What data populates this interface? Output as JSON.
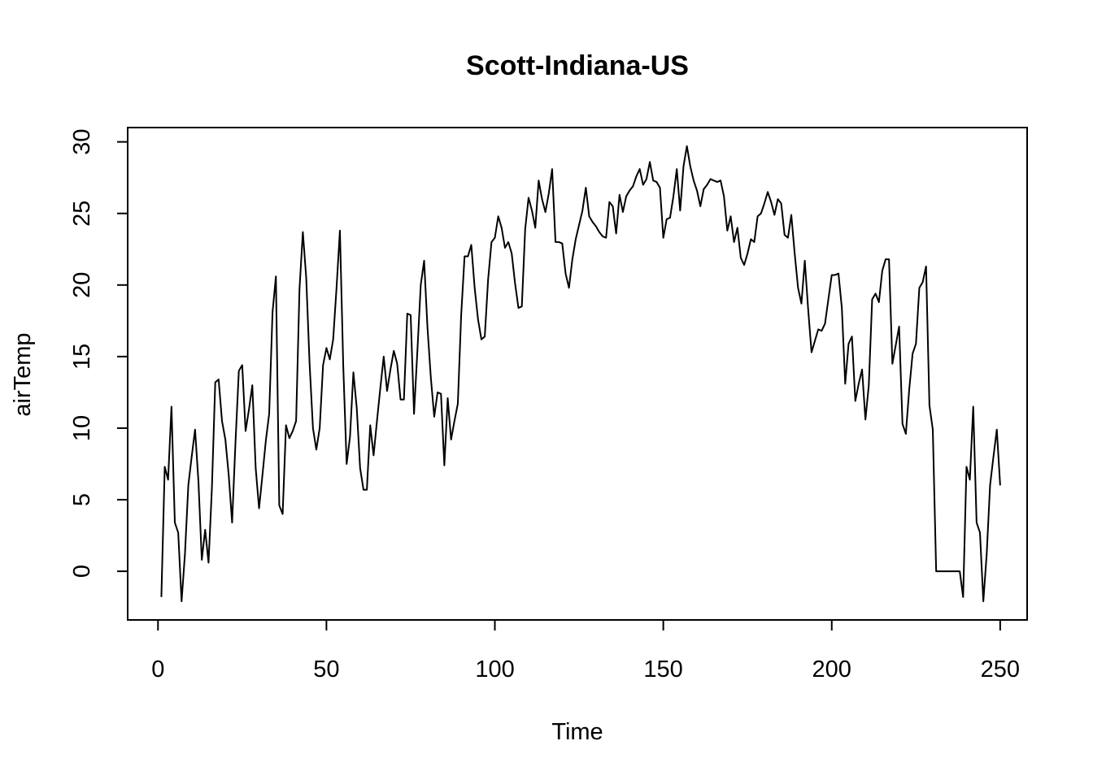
{
  "chart_data": {
    "type": "line",
    "title": "Scott-Indiana-US",
    "xlabel": "Time",
    "ylabel": "airTemp",
    "xlim": [
      -9,
      258
    ],
    "ylim": [
      -3.4,
      31
    ],
    "x_ticks": [
      0,
      50,
      100,
      150,
      200,
      250
    ],
    "y_ticks": [
      0,
      5,
      10,
      15,
      20,
      25,
      30
    ],
    "series": [
      {
        "name": "airTemp",
        "x_start": 1,
        "values": [
          -1.8,
          7.3,
          6.4,
          11.5,
          3.4,
          2.7,
          -2.1,
          1.2,
          6.0,
          8.0,
          9.9,
          6.3,
          0.8,
          2.9,
          0.6,
          5.8,
          13.2,
          13.4,
          10.5,
          9.2,
          6.7,
          3.4,
          9.0,
          14.0,
          14.4,
          9.8,
          11.3,
          13.0,
          7.2,
          4.4,
          6.7,
          9.1,
          11.0,
          18.1,
          20.6,
          4.6,
          4.0,
          10.2,
          9.3,
          9.8,
          10.5,
          19.7,
          23.7,
          20.5,
          14.5,
          10.0,
          8.5,
          10.0,
          14.4,
          15.6,
          14.8,
          16.2,
          19.8,
          23.8,
          14.3,
          7.5,
          9.4,
          13.9,
          11.4,
          7.2,
          5.7,
          5.7,
          10.2,
          8.1,
          10.5,
          12.8,
          15.0,
          12.6,
          14.1,
          15.4,
          14.5,
          12.0,
          12.0,
          18.0,
          17.9,
          11.0,
          15.4,
          20.0,
          21.7,
          17.0,
          13.5,
          10.8,
          12.5,
          12.4,
          7.4,
          12.1,
          9.2,
          10.5,
          11.7,
          17.9,
          22.0,
          22.0,
          22.8,
          19.8,
          17.6,
          16.2,
          16.4,
          20.4,
          23.0,
          23.3,
          24.8,
          24.0,
          22.6,
          23.0,
          22.2,
          20.1,
          18.4,
          18.5,
          23.9,
          26.1,
          25.2,
          24.0,
          27.3,
          26.0,
          25.1,
          26.4,
          28.1,
          23.0,
          23.0,
          22.9,
          20.8,
          19.8,
          21.8,
          23.2,
          24.2,
          25.2,
          26.8,
          24.8,
          24.4,
          24.1,
          23.7,
          23.4,
          23.3,
          25.8,
          25.5,
          23.6,
          26.3,
          25.1,
          26.2,
          26.6,
          26.9,
          27.6,
          28.1,
          27.0,
          27.4,
          28.6,
          27.3,
          27.2,
          26.8,
          23.3,
          24.6,
          24.7,
          26.2,
          28.1,
          25.2,
          28.3,
          29.7,
          28.3,
          27.3,
          26.6,
          25.5,
          26.7,
          27.0,
          27.4,
          27.3,
          27.2,
          27.3,
          26.2,
          23.8,
          24.8,
          23.0,
          24.0,
          21.9,
          21.4,
          22.2,
          23.2,
          23.0,
          24.8,
          25.0,
          25.7,
          26.5,
          25.8,
          24.9,
          26.0,
          25.7,
          23.5,
          23.3,
          24.9,
          22.2,
          19.8,
          18.7,
          21.7,
          18.3,
          15.3,
          16.1,
          16.9,
          16.8,
          17.3,
          19.0,
          20.7,
          20.7,
          20.8,
          18.4,
          13.1,
          15.9,
          16.4,
          11.9,
          13.1,
          14.1,
          10.6,
          13.0,
          19.0,
          19.4,
          18.8,
          21.0,
          21.8,
          21.8,
          14.5,
          15.8,
          17.1,
          10.3,
          9.6,
          12.7,
          15.2,
          15.9,
          19.8,
          20.2,
          21.3,
          11.6,
          9.9,
          0.0,
          0.0,
          0.0,
          0.0,
          0.0,
          0.0,
          0.0,
          0.0,
          -1.8,
          7.3,
          6.4,
          11.5,
          3.4,
          2.7,
          -2.1,
          1.2,
          6.0,
          8.0,
          9.9,
          6.0
        ]
      }
    ]
  }
}
